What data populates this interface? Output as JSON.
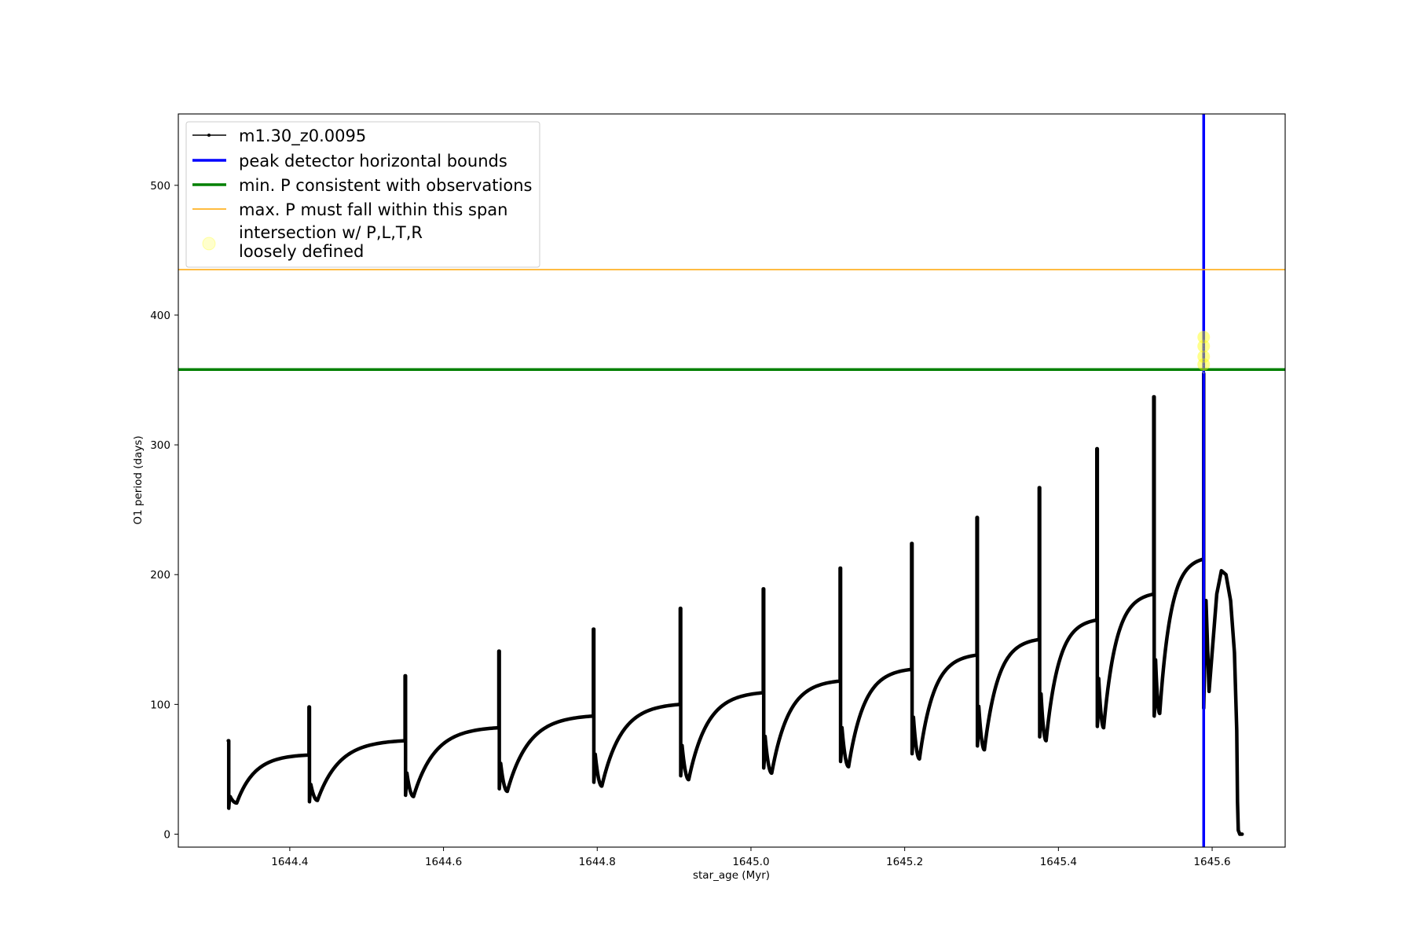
{
  "chart_data": {
    "type": "line",
    "xlabel": "star_age (Myr)",
    "ylabel": "O1 period (days)",
    "xlim": [
      1644.255,
      1645.695
    ],
    "ylim": [
      -10,
      555
    ],
    "xticks": [
      1644.4,
      1644.6,
      1644.8,
      1645.0,
      1645.2,
      1645.4,
      1645.6
    ],
    "xtick_labels": [
      "1644.4",
      "1644.6",
      "1644.8",
      "1645.0",
      "1645.2",
      "1645.4",
      "1645.6"
    ],
    "yticks": [
      0,
      100,
      200,
      300,
      400,
      500
    ],
    "ytick_labels": [
      "0",
      "100",
      "200",
      "300",
      "400",
      "500"
    ],
    "legend_position": "upper-left",
    "series": [
      {
        "name": "m1.30_z0.0095",
        "color": "#000000",
        "style": "line-with-dot-markers",
        "cycles": [
          {
            "t0": 1644.32,
            "t1": 1644.425,
            "spike": 72,
            "low": 20,
            "min": 24,
            "plateau": 61
          },
          {
            "t0": 1644.425,
            "t1": 1644.55,
            "spike": 98,
            "low": 25,
            "min": 26,
            "plateau": 72
          },
          {
            "t0": 1644.55,
            "t1": 1644.672,
            "spike": 122,
            "low": 30,
            "min": 29,
            "plateau": 82
          },
          {
            "t0": 1644.672,
            "t1": 1644.795,
            "spike": 141,
            "low": 35,
            "min": 33,
            "plateau": 91
          },
          {
            "t0": 1644.795,
            "t1": 1644.908,
            "spike": 158,
            "low": 40,
            "min": 37,
            "plateau": 100
          },
          {
            "t0": 1644.908,
            "t1": 1645.016,
            "spike": 174,
            "low": 45,
            "min": 42,
            "plateau": 109
          },
          {
            "t0": 1645.016,
            "t1": 1645.116,
            "spike": 189,
            "low": 51,
            "min": 47,
            "plateau": 118
          },
          {
            "t0": 1645.116,
            "t1": 1645.209,
            "spike": 205,
            "low": 56,
            "min": 52,
            "plateau": 127
          },
          {
            "t0": 1645.209,
            "t1": 1645.294,
            "spike": 224,
            "low": 62,
            "min": 58,
            "plateau": 138
          },
          {
            "t0": 1645.294,
            "t1": 1645.375,
            "spike": 244,
            "low": 68,
            "min": 65,
            "plateau": 150
          },
          {
            "t0": 1645.375,
            "t1": 1645.45,
            "spike": 267,
            "low": 75,
            "min": 72,
            "plateau": 165
          },
          {
            "t0": 1645.45,
            "t1": 1645.524,
            "spike": 297,
            "low": 83,
            "min": 82,
            "plateau": 185
          },
          {
            "t0": 1645.524,
            "t1": 1645.589,
            "spike": 337,
            "low": 91,
            "min": 93,
            "plateau": 212
          }
        ],
        "tail": [
          {
            "x": 1645.589,
            "y": 355
          },
          {
            "x": 1645.589,
            "y": 97
          },
          {
            "x": 1645.592,
            "y": 180
          },
          {
            "x": 1645.596,
            "y": 110
          },
          {
            "x": 1645.6,
            "y": 140
          },
          {
            "x": 1645.606,
            "y": 185
          },
          {
            "x": 1645.612,
            "y": 203
          },
          {
            "x": 1645.618,
            "y": 200
          },
          {
            "x": 1645.624,
            "y": 180
          },
          {
            "x": 1645.629,
            "y": 140
          },
          {
            "x": 1645.632,
            "y": 80
          },
          {
            "x": 1645.633,
            "y": 25
          },
          {
            "x": 1645.634,
            "y": 3
          },
          {
            "x": 1645.636,
            "y": 0
          },
          {
            "x": 1645.639,
            "y": 0
          }
        ]
      },
      {
        "name": "peak detector horizontal bounds",
        "color": "#0000ff",
        "style": "vertical-line",
        "x": 1645.589
      },
      {
        "name": "min. P consistent with observations",
        "color": "#008000",
        "style": "horizontal-line",
        "y": 358
      },
      {
        "name": "max. P must fall within this span",
        "color": "#ffa500",
        "style": "horizontal-line",
        "y": 435
      },
      {
        "name": "intersection w/ P,L,T,R\nloosely defined",
        "color": "#ffff00",
        "style": "highlight-markers",
        "points": [
          {
            "x": 1645.589,
            "y": 383
          },
          {
            "x": 1645.589,
            "y": 376
          },
          {
            "x": 1645.589,
            "y": 368
          },
          {
            "x": 1645.589,
            "y": 362
          }
        ]
      }
    ]
  }
}
